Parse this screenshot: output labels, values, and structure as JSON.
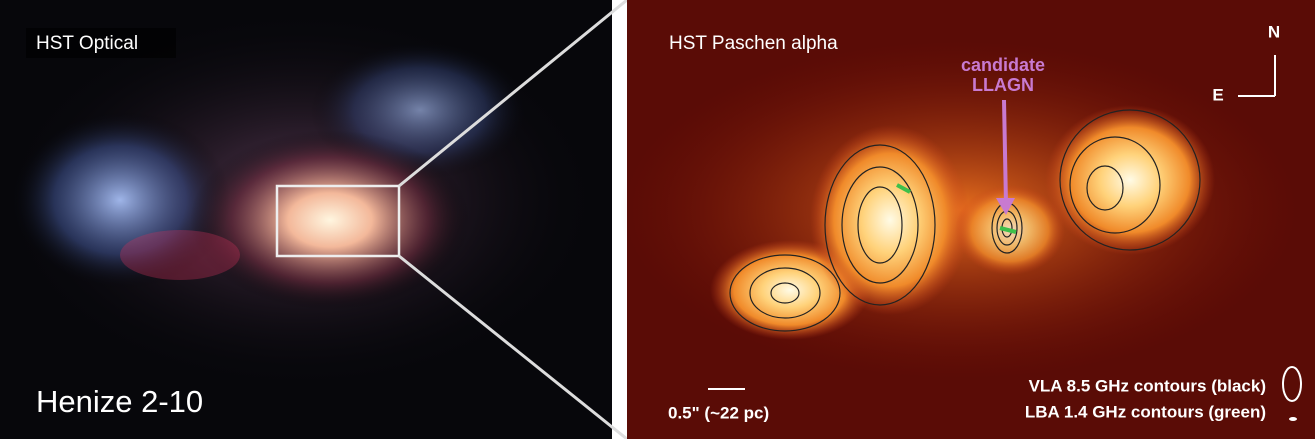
{
  "left_panel": {
    "label": "HST Optical",
    "name": "Henize 2-10"
  },
  "right_panel": {
    "label": "HST Paschen alpha",
    "annotation": [
      "candidate",
      "LLAGN"
    ],
    "compass": {
      "north": "N",
      "east": "E"
    },
    "scale_bar": "0.5\" (~22 pc)",
    "legend": [
      "VLA 8.5 GHz contours (black)",
      "LBA 1.4 GHz contours (green)"
    ]
  }
}
